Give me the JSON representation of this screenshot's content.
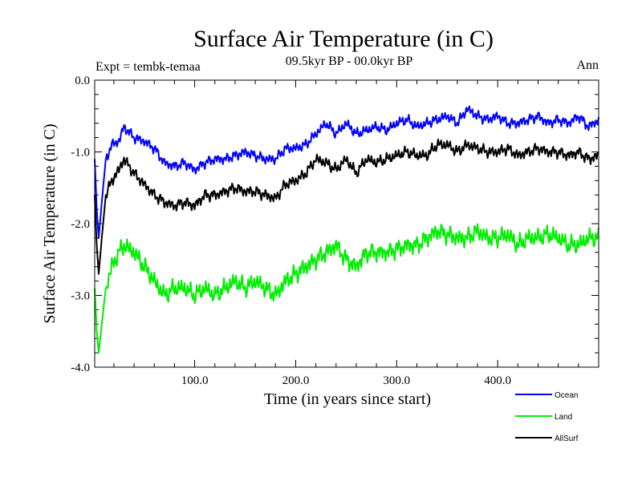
{
  "header": {
    "title": "Surface Air Temperature (in C)",
    "subtitle": "09.5kyr BP - 00.0kyr BP",
    "expt": "Expt = tembk-temaa",
    "season": "Ann"
  },
  "chart_data": {
    "type": "line",
    "title": "Surface Air Temperature (in C)",
    "subtitle": "09.5kyr BP - 00.0kyr BP",
    "xlabel": "Time (in years since start)",
    "ylabel": "Surface Air Temperature (in C)",
    "xlim": [
      1,
      500
    ],
    "ylim": [
      -4.0,
      0.0
    ],
    "xticks": [
      100,
      200,
      300,
      400
    ],
    "xtick_labels": [
      "100.0",
      "200.0",
      "300.0",
      "400.0"
    ],
    "yticks": [
      -4.0,
      -3.0,
      -2.0,
      -1.0,
      0.0
    ],
    "ytick_labels": [
      "-4.0",
      "-3.0",
      "-2.0",
      "-1.0",
      "0.0"
    ],
    "grid": false,
    "legend": "bottom-right",
    "series": [
      {
        "name": "Ocean",
        "color": "#0000ff",
        "x": [
          1,
          3,
          5,
          8,
          12,
          18,
          25,
          30,
          40,
          50,
          60,
          70,
          80,
          90,
          100,
          110,
          120,
          130,
          140,
          150,
          160,
          170,
          180,
          190,
          200,
          210,
          220,
          230,
          240,
          250,
          260,
          270,
          280,
          290,
          300,
          310,
          320,
          330,
          340,
          350,
          360,
          370,
          380,
          390,
          400,
          410,
          420,
          430,
          440,
          450,
          460,
          470,
          480,
          490,
          500
        ],
        "values": [
          -1.1,
          -1.8,
          -2.2,
          -1.7,
          -1.1,
          -0.9,
          -0.85,
          -0.65,
          -0.8,
          -0.85,
          -0.95,
          -1.15,
          -1.2,
          -1.15,
          -1.25,
          -1.15,
          -1.1,
          -1.1,
          -1.05,
          -1.0,
          -1.05,
          -1.1,
          -1.1,
          -0.95,
          -0.95,
          -0.9,
          -0.75,
          -0.6,
          -0.75,
          -0.6,
          -0.75,
          -0.7,
          -0.65,
          -0.7,
          -0.6,
          -0.55,
          -0.65,
          -0.6,
          -0.55,
          -0.5,
          -0.6,
          -0.4,
          -0.5,
          -0.55,
          -0.5,
          -0.6,
          -0.6,
          -0.55,
          -0.5,
          -0.6,
          -0.55,
          -0.6,
          -0.5,
          -0.65,
          -0.55
        ]
      },
      {
        "name": "Land",
        "color": "#00ee00",
        "x": [
          1,
          3,
          5,
          8,
          12,
          18,
          25,
          30,
          40,
          50,
          60,
          70,
          80,
          90,
          100,
          110,
          120,
          130,
          140,
          150,
          160,
          170,
          180,
          190,
          200,
          210,
          220,
          230,
          240,
          250,
          260,
          270,
          280,
          290,
          300,
          310,
          320,
          330,
          340,
          350,
          360,
          370,
          380,
          390,
          400,
          410,
          420,
          430,
          440,
          450,
          460,
          470,
          480,
          490,
          500
        ],
        "values": [
          -2.9,
          -3.5,
          -3.8,
          -3.4,
          -2.9,
          -2.6,
          -2.4,
          -2.3,
          -2.4,
          -2.6,
          -2.8,
          -3.0,
          -2.9,
          -2.9,
          -3.0,
          -2.9,
          -3.0,
          -2.9,
          -2.8,
          -2.9,
          -2.8,
          -2.9,
          -3.0,
          -2.8,
          -2.7,
          -2.6,
          -2.5,
          -2.4,
          -2.3,
          -2.5,
          -2.6,
          -2.4,
          -2.4,
          -2.4,
          -2.35,
          -2.3,
          -2.3,
          -2.2,
          -2.1,
          -2.15,
          -2.2,
          -2.2,
          -2.1,
          -2.2,
          -2.2,
          -2.15,
          -2.3,
          -2.2,
          -2.2,
          -2.15,
          -2.2,
          -2.3,
          -2.3,
          -2.2,
          -2.2
        ]
      },
      {
        "name": "AllSurf",
        "color": "#000000",
        "x": [
          1,
          3,
          5,
          8,
          12,
          18,
          25,
          30,
          40,
          50,
          60,
          70,
          80,
          90,
          100,
          110,
          120,
          130,
          140,
          150,
          160,
          170,
          180,
          190,
          200,
          210,
          220,
          230,
          240,
          250,
          260,
          270,
          280,
          290,
          300,
          310,
          320,
          330,
          340,
          350,
          360,
          370,
          380,
          390,
          400,
          410,
          420,
          430,
          440,
          450,
          460,
          470,
          480,
          490,
          500
        ],
        "values": [
          -1.6,
          -2.3,
          -2.7,
          -2.2,
          -1.6,
          -1.4,
          -1.25,
          -1.1,
          -1.3,
          -1.45,
          -1.6,
          -1.7,
          -1.75,
          -1.7,
          -1.75,
          -1.6,
          -1.6,
          -1.55,
          -1.5,
          -1.55,
          -1.55,
          -1.6,
          -1.65,
          -1.45,
          -1.4,
          -1.3,
          -1.1,
          -1.15,
          -1.25,
          -1.1,
          -1.3,
          -1.1,
          -1.15,
          -1.1,
          -1.05,
          -1.0,
          -1.05,
          -1.05,
          -0.9,
          -0.9,
          -1.0,
          -0.9,
          -0.95,
          -1.0,
          -1.0,
          -0.95,
          -1.05,
          -1.0,
          -0.95,
          -1.0,
          -1.0,
          -1.05,
          -1.0,
          -1.1,
          -1.05
        ]
      }
    ]
  }
}
